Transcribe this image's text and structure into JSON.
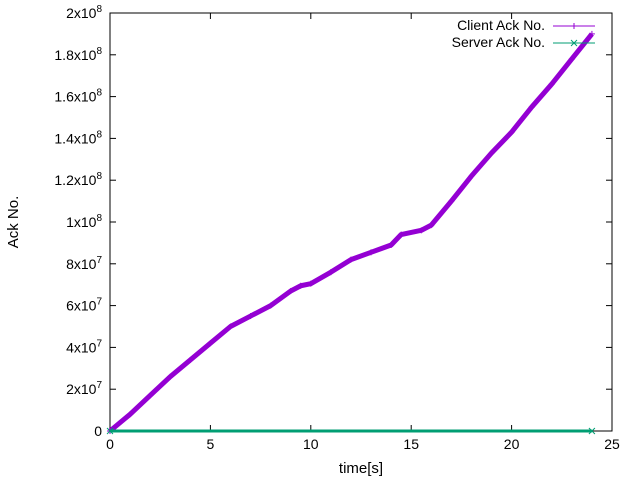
{
  "chart_data": {
    "type": "scatter",
    "title": "",
    "xlabel": "time[s]",
    "ylabel": "Ack No.",
    "xlim": [
      0,
      25
    ],
    "ylim": [
      0,
      200000000
    ],
    "x_ticks": [
      0,
      5,
      10,
      15,
      20,
      25
    ],
    "y_ticks": [
      {
        "value": 0,
        "mantissa": "0",
        "exp": ""
      },
      {
        "value": 20000000,
        "mantissa": "2x10",
        "exp": "7"
      },
      {
        "value": 40000000,
        "mantissa": "4x10",
        "exp": "7"
      },
      {
        "value": 60000000,
        "mantissa": "6x10",
        "exp": "7"
      },
      {
        "value": 80000000,
        "mantissa": "8x10",
        "exp": "7"
      },
      {
        "value": 100000000,
        "mantissa": "1x10",
        "exp": "8"
      },
      {
        "value": 120000000,
        "mantissa": "1.2x10",
        "exp": "8"
      },
      {
        "value": 140000000,
        "mantissa": "1.4x10",
        "exp": "8"
      },
      {
        "value": 160000000,
        "mantissa": "1.6x10",
        "exp": "8"
      },
      {
        "value": 180000000,
        "mantissa": "1.8x10",
        "exp": "8"
      },
      {
        "value": 200000000,
        "mantissa": "2x10",
        "exp": "8"
      }
    ],
    "grid": false,
    "legend_position": "top-right",
    "series": [
      {
        "name": "Client Ack No.",
        "marker": "plus",
        "color": "#9400d3",
        "points": [
          [
            0,
            0
          ],
          [
            1,
            8000000
          ],
          [
            2,
            17000000
          ],
          [
            3,
            26000000
          ],
          [
            4,
            34000000
          ],
          [
            5,
            42000000
          ],
          [
            6,
            50000000
          ],
          [
            7,
            55000000
          ],
          [
            8,
            60000000
          ],
          [
            9,
            67000000
          ],
          [
            9.5,
            69500000
          ],
          [
            10,
            70500000
          ],
          [
            11,
            76000000
          ],
          [
            12,
            82000000
          ],
          [
            13,
            85500000
          ],
          [
            14,
            89000000
          ],
          [
            14.5,
            94000000
          ],
          [
            15.5,
            96000000
          ],
          [
            16,
            98500000
          ],
          [
            17,
            110000000
          ],
          [
            18,
            122000000
          ],
          [
            19,
            133000000
          ],
          [
            20,
            143000000
          ],
          [
            21,
            155000000
          ],
          [
            22,
            166000000
          ],
          [
            23,
            178000000
          ],
          [
            24,
            190000000
          ]
        ]
      },
      {
        "name": "Server Ack No.",
        "marker": "cross",
        "color": "#009e73",
        "points": [
          [
            0,
            0
          ],
          [
            24,
            0
          ]
        ]
      }
    ]
  }
}
